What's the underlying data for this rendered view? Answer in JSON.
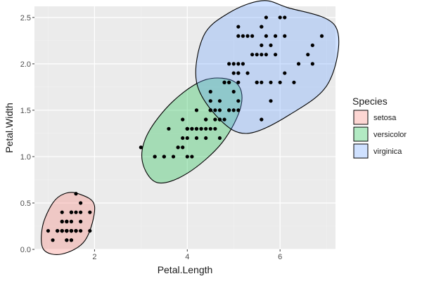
{
  "chart_data": {
    "type": "scatter",
    "title": "",
    "xlabel": "Petal.Length",
    "ylabel": "Petal.Width",
    "xlim": [
      0.705,
      7.195
    ],
    "ylim": [
      0.0,
      2.62
    ],
    "x_ticks": [
      2,
      4,
      6
    ],
    "y_ticks": [
      0.0,
      0.5,
      1.0,
      1.5,
      2.0,
      2.5
    ],
    "x_tick_labels": [
      "2",
      "4",
      "6"
    ],
    "y_tick_labels": [
      "0.0",
      "0.5",
      "1.0",
      "1.5",
      "2.0",
      "2.5"
    ],
    "grid": true,
    "legend": {
      "title": "Species",
      "position": "right",
      "entries": [
        {
          "label": "setosa",
          "fill": "#F8766D"
        },
        {
          "label": "versicolor",
          "fill": "#00BA38"
        },
        {
          "label": "virginica",
          "fill": "#619CFF"
        }
      ]
    },
    "ellipses": [
      {
        "group": "setosa",
        "center": [
          1.41,
          0.27
        ],
        "fill": "#F8766D",
        "path": [
          [
            1.653,
            0.6
          ],
          [
            2.0,
            0.47
          ],
          [
            1.8,
            0.1
          ],
          [
            1.3,
            -0.05
          ],
          [
            0.9,
            0.0
          ],
          [
            0.88,
            0.25
          ],
          [
            1.1,
            0.5
          ],
          [
            1.35,
            0.6
          ],
          [
            1.653,
            0.6
          ]
        ]
      },
      {
        "group": "versicolor",
        "center": [
          4.23,
          1.27
        ],
        "fill": "#00BA38",
        "path": [
          [
            5.04,
            1.8
          ],
          [
            5.16,
            1.55
          ],
          [
            4.75,
            1.15
          ],
          [
            4.0,
            0.82
          ],
          [
            3.35,
            0.72
          ],
          [
            3.03,
            0.95
          ],
          [
            3.15,
            1.25
          ],
          [
            3.7,
            1.6
          ],
          [
            4.4,
            1.83
          ],
          [
            5.04,
            1.8
          ]
        ]
      },
      {
        "group": "virginica",
        "center": [
          5.55,
          2.03
        ],
        "fill": "#619CFF",
        "path": [
          [
            6.14,
            2.61
          ],
          [
            7.2,
            2.4
          ],
          [
            7.05,
            1.8
          ],
          [
            6.2,
            1.45
          ],
          [
            5.3,
            1.25
          ],
          [
            4.7,
            1.4
          ],
          [
            4.2,
            1.8
          ],
          [
            4.35,
            2.3
          ],
          [
            4.9,
            2.55
          ],
          [
            5.6,
            2.68
          ],
          [
            6.14,
            2.61
          ]
        ]
      }
    ],
    "series": [
      {
        "name": "setosa",
        "points": [
          [
            1.4,
            0.2
          ],
          [
            1.4,
            0.2
          ],
          [
            1.3,
            0.2
          ],
          [
            1.5,
            0.2
          ],
          [
            1.4,
            0.2
          ],
          [
            1.7,
            0.4
          ],
          [
            1.4,
            0.3
          ],
          [
            1.5,
            0.2
          ],
          [
            1.4,
            0.2
          ],
          [
            1.5,
            0.1
          ],
          [
            1.5,
            0.2
          ],
          [
            1.6,
            0.2
          ],
          [
            1.4,
            0.1
          ],
          [
            1.1,
            0.1
          ],
          [
            1.2,
            0.2
          ],
          [
            1.5,
            0.4
          ],
          [
            1.3,
            0.4
          ],
          [
            1.4,
            0.3
          ],
          [
            1.7,
            0.3
          ],
          [
            1.5,
            0.3
          ],
          [
            1.7,
            0.2
          ],
          [
            1.5,
            0.4
          ],
          [
            1.0,
            0.2
          ],
          [
            1.7,
            0.5
          ],
          [
            1.9,
            0.2
          ],
          [
            1.6,
            0.2
          ],
          [
            1.6,
            0.4
          ],
          [
            1.5,
            0.2
          ],
          [
            1.4,
            0.2
          ],
          [
            1.6,
            0.2
          ],
          [
            1.6,
            0.2
          ],
          [
            1.5,
            0.4
          ],
          [
            1.5,
            0.1
          ],
          [
            1.4,
            0.2
          ],
          [
            1.5,
            0.2
          ],
          [
            1.2,
            0.2
          ],
          [
            1.3,
            0.2
          ],
          [
            1.4,
            0.1
          ],
          [
            1.3,
            0.2
          ],
          [
            1.5,
            0.2
          ],
          [
            1.3,
            0.3
          ],
          [
            1.3,
            0.3
          ],
          [
            1.3,
            0.2
          ],
          [
            1.6,
            0.6
          ],
          [
            1.9,
            0.4
          ],
          [
            1.4,
            0.3
          ],
          [
            1.6,
            0.2
          ],
          [
            1.4,
            0.2
          ],
          [
            1.5,
            0.2
          ],
          [
            1.4,
            0.2
          ]
        ]
      },
      {
        "name": "versicolor",
        "points": [
          [
            4.7,
            1.4
          ],
          [
            4.5,
            1.5
          ],
          [
            4.9,
            1.5
          ],
          [
            4.0,
            1.3
          ],
          [
            4.6,
            1.5
          ],
          [
            4.5,
            1.3
          ],
          [
            4.7,
            1.6
          ],
          [
            3.3,
            1.0
          ],
          [
            4.6,
            1.3
          ],
          [
            3.9,
            1.4
          ],
          [
            3.5,
            1.0
          ],
          [
            4.2,
            1.5
          ],
          [
            4.0,
            1.0
          ],
          [
            4.7,
            1.4
          ],
          [
            3.6,
            1.3
          ],
          [
            4.4,
            1.4
          ],
          [
            4.5,
            1.5
          ],
          [
            4.1,
            1.0
          ],
          [
            4.5,
            1.5
          ],
          [
            3.9,
            1.1
          ],
          [
            4.8,
            1.8
          ],
          [
            4.0,
            1.3
          ],
          [
            4.9,
            1.5
          ],
          [
            4.7,
            1.2
          ],
          [
            4.3,
            1.3
          ],
          [
            4.4,
            1.4
          ],
          [
            4.8,
            1.4
          ],
          [
            5.0,
            1.7
          ],
          [
            4.5,
            1.5
          ],
          [
            3.5,
            1.0
          ],
          [
            3.8,
            1.1
          ],
          [
            3.7,
            1.0
          ],
          [
            3.9,
            1.2
          ],
          [
            5.1,
            1.6
          ],
          [
            4.5,
            1.5
          ],
          [
            4.5,
            1.6
          ],
          [
            4.7,
            1.5
          ],
          [
            4.4,
            1.3
          ],
          [
            4.1,
            1.3
          ],
          [
            4.0,
            1.3
          ],
          [
            4.4,
            1.2
          ],
          [
            4.6,
            1.4
          ],
          [
            4.0,
            1.2
          ],
          [
            3.3,
            1.0
          ],
          [
            4.2,
            1.3
          ],
          [
            4.2,
            1.2
          ],
          [
            4.2,
            1.3
          ],
          [
            4.3,
            1.3
          ],
          [
            3.0,
            1.1
          ],
          [
            4.1,
            1.3
          ]
        ]
      },
      {
        "name": "virginica",
        "points": [
          [
            6.0,
            2.5
          ],
          [
            5.1,
            1.9
          ],
          [
            5.9,
            2.1
          ],
          [
            5.6,
            1.8
          ],
          [
            5.8,
            2.2
          ],
          [
            6.6,
            2.1
          ],
          [
            4.5,
            1.7
          ],
          [
            6.3,
            1.8
          ],
          [
            5.8,
            1.8
          ],
          [
            6.1,
            2.5
          ],
          [
            5.1,
            2.0
          ],
          [
            5.3,
            1.9
          ],
          [
            5.5,
            2.1
          ],
          [
            5.0,
            2.0
          ],
          [
            5.1,
            2.4
          ],
          [
            5.3,
            2.3
          ],
          [
            5.5,
            1.8
          ],
          [
            6.7,
            2.2
          ],
          [
            6.9,
            2.3
          ],
          [
            5.0,
            1.5
          ],
          [
            5.7,
            2.3
          ],
          [
            4.9,
            2.0
          ],
          [
            6.7,
            2.0
          ],
          [
            4.9,
            1.8
          ],
          [
            5.7,
            2.1
          ],
          [
            6.0,
            1.8
          ],
          [
            4.8,
            1.8
          ],
          [
            4.9,
            1.8
          ],
          [
            5.6,
            2.1
          ],
          [
            5.8,
            1.6
          ],
          [
            6.1,
            1.9
          ],
          [
            6.4,
            2.0
          ],
          [
            5.6,
            2.2
          ],
          [
            5.1,
            1.5
          ],
          [
            5.6,
            1.4
          ],
          [
            6.1,
            2.3
          ],
          [
            5.6,
            2.4
          ],
          [
            5.5,
            1.8
          ],
          [
            4.8,
            1.8
          ],
          [
            5.4,
            2.1
          ],
          [
            5.6,
            2.4
          ],
          [
            5.1,
            2.3
          ],
          [
            5.1,
            1.9
          ],
          [
            5.9,
            2.3
          ],
          [
            5.7,
            2.5
          ],
          [
            5.2,
            2.3
          ],
          [
            5.0,
            1.9
          ],
          [
            5.2,
            2.0
          ],
          [
            5.4,
            2.3
          ],
          [
            5.1,
            1.8
          ]
        ]
      }
    ]
  }
}
